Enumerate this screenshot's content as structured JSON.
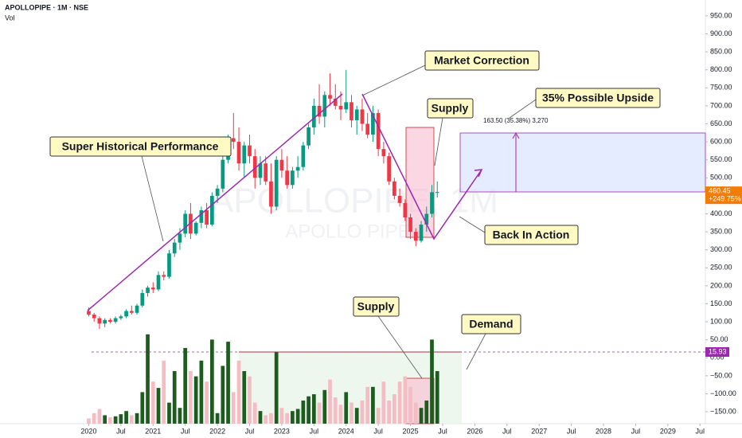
{
  "chart_data": {
    "type": "candlestick",
    "title": "APOLLOPIPE · 1M · NSE",
    "subtitle": "Vol",
    "watermark": [
      "APOLLOPIPE, 1M",
      "APOLLO PIPES"
    ],
    "annotations": [
      "Super Historical Performance",
      "Market Correction",
      "Supply",
      "35% Possible Upside",
      "Back In Action",
      "Supply",
      "Demand"
    ],
    "measure_label": "163.50 (35.38%) 3,270",
    "last_price": 460.45,
    "change_label": "+249.75%",
    "last_volume": 15.93,
    "up_color": "#089981",
    "down_color": "#f23645",
    "volume_up_color": "#1e5b1f",
    "volume_down_color": "#f5bcc4",
    "open": [
      130,
      120,
      110,
      95,
      105,
      100,
      110,
      115,
      130,
      125,
      145,
      180,
      195,
      190,
      230,
      225,
      290,
      320,
      345,
      400,
      345,
      375,
      410,
      370,
      450,
      470,
      550,
      610,
      600,
      540,
      590,
      560,
      500,
      540,
      490,
      420,
      550,
      520,
      480,
      520,
      530,
      590,
      640,
      700,
      670,
      730,
      720,
      700,
      690,
      710,
      660,
      690,
      650,
      620,
      680,
      580,
      560,
      490,
      450,
      430,
      390,
      350,
      325,
      370,
      400,
      460
    ],
    "high": [
      140,
      125,
      115,
      110,
      110,
      115,
      120,
      135,
      145,
      150,
      190,
      200,
      210,
      240,
      240,
      300,
      330,
      360,
      410,
      430,
      380,
      420,
      430,
      460,
      480,
      560,
      620,
      680,
      640,
      600,
      620,
      580,
      560,
      560,
      540,
      560,
      580,
      560,
      530,
      560,
      600,
      650,
      720,
      760,
      740,
      790,
      760,
      740,
      800,
      730,
      700,
      720,
      680,
      700,
      690,
      600,
      570,
      500,
      470,
      440,
      400,
      360,
      380,
      420,
      480,
      490
    ],
    "low": [
      115,
      100,
      80,
      85,
      95,
      95,
      105,
      110,
      120,
      120,
      140,
      170,
      180,
      185,
      215,
      220,
      280,
      300,
      335,
      330,
      340,
      360,
      360,
      365,
      430,
      460,
      540,
      580,
      520,
      500,
      540,
      470,
      480,
      480,
      400,
      410,
      500,
      470,
      470,
      500,
      520,
      580,
      620,
      650,
      640,
      700,
      690,
      660,
      680,
      640,
      620,
      630,
      610,
      600,
      560,
      540,
      480,
      440,
      420,
      380,
      330,
      310,
      320,
      350,
      390,
      445
    ],
    "close": [
      120,
      110,
      95,
      105,
      100,
      110,
      115,
      130,
      125,
      145,
      180,
      195,
      190,
      230,
      225,
      290,
      320,
      345,
      400,
      345,
      375,
      410,
      370,
      450,
      470,
      550,
      610,
      600,
      540,
      590,
      560,
      500,
      540,
      490,
      420,
      550,
      520,
      480,
      520,
      530,
      590,
      640,
      700,
      670,
      730,
      720,
      700,
      690,
      710,
      660,
      690,
      650,
      620,
      680,
      580,
      560,
      490,
      450,
      430,
      390,
      350,
      325,
      370,
      400,
      460,
      460.45
    ],
    "volume": [
      5,
      10,
      14,
      8,
      6,
      7,
      9,
      12,
      8,
      10,
      30,
      85,
      40,
      34,
      60,
      20,
      50,
      15,
      72,
      50,
      45,
      60,
      40,
      80,
      10,
      55,
      78,
      30,
      60,
      50,
      45,
      20,
      12,
      8,
      10,
      68,
      15,
      10,
      12,
      14,
      22,
      26,
      28,
      20,
      32,
      42,
      25,
      18,
      30,
      20,
      15,
      22,
      35,
      35,
      15,
      40,
      22,
      28,
      40,
      45,
      35,
      20,
      15,
      22,
      80,
      50
    ],
    "volume_lim": [
      0,
      100
    ],
    "xlim": [
      -1.7,
      115
    ],
    "xticks": [
      {
        "value": 0,
        "label": "2020"
      },
      {
        "value": 6,
        "label": "Jul"
      },
      {
        "value": 12,
        "label": "2021"
      },
      {
        "value": 18,
        "label": "Jul"
      },
      {
        "value": 24,
        "label": "2022"
      },
      {
        "value": 30,
        "label": "Jul"
      },
      {
        "value": 36,
        "label": "2023"
      },
      {
        "value": 42,
        "label": "Jul"
      },
      {
        "value": 48,
        "label": "2024"
      },
      {
        "value": 54,
        "label": "Jul"
      },
      {
        "value": 60,
        "label": "2025"
      },
      {
        "value": 66,
        "label": "Jul"
      },
      {
        "value": 72,
        "label": "2026"
      },
      {
        "value": 78,
        "label": "Jul"
      },
      {
        "value": 84,
        "label": "2027"
      },
      {
        "value": 90,
        "label": "Jul"
      },
      {
        "value": 96,
        "label": "2028"
      },
      {
        "value": 102,
        "label": "Jul"
      },
      {
        "value": 108,
        "label": "2029"
      },
      {
        "value": 114,
        "label": "Jul"
      }
    ],
    "ylim": [
      -183,
      994
    ],
    "yticks": [
      {
        "value": 950,
        "label": "950.00"
      },
      {
        "value": 900,
        "label": "900.00"
      },
      {
        "value": 850,
        "label": "850.00"
      },
      {
        "value": 800,
        "label": "800.00"
      },
      {
        "value": 750,
        "label": "750.00"
      },
      {
        "value": 700,
        "label": "700.00"
      },
      {
        "value": 650,
        "label": "650.00"
      },
      {
        "value": 600,
        "label": "600.00"
      },
      {
        "value": 550,
        "label": "550.00"
      },
      {
        "value": 500,
        "label": "500.00"
      },
      {
        "value": 450,
        "label": "450.00"
      },
      {
        "value": 400,
        "label": "400.00"
      },
      {
        "value": 350,
        "label": "350.00"
      },
      {
        "value": 300,
        "label": "300.00"
      },
      {
        "value": 250,
        "label": "250.00"
      },
      {
        "value": 200,
        "label": "200.00"
      },
      {
        "value": 150,
        "label": "150.00"
      },
      {
        "value": 100,
        "label": "100.00"
      },
      {
        "value": 50,
        "label": "50.00"
      },
      {
        "value": 0,
        "label": "0.00"
      },
      {
        "value": -50,
        "label": "−50.00"
      },
      {
        "value": -100,
        "label": "−100.00"
      },
      {
        "value": -150,
        "label": "−150.00"
      }
    ],
    "grid": false
  }
}
